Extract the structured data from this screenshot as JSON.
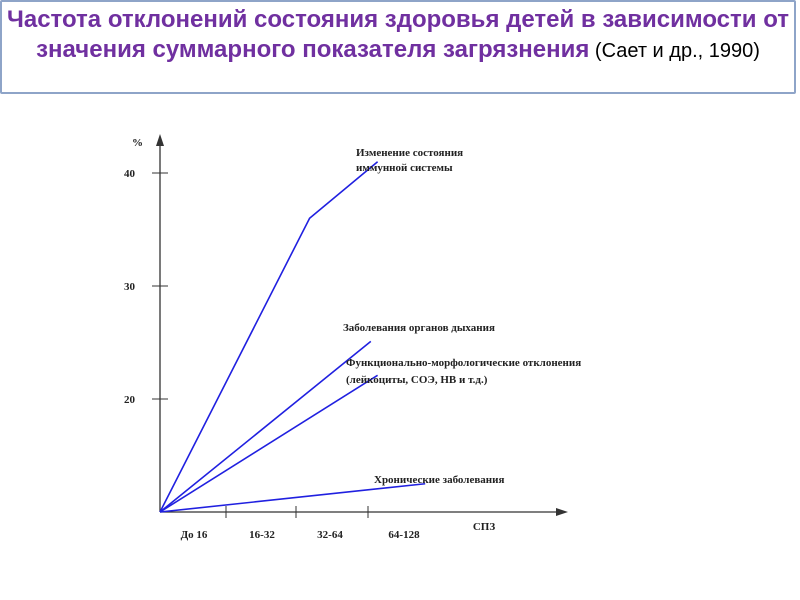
{
  "title": {
    "main": "Частота отклонений состояния здоровья детей в зависимости от значения суммарного показателя загрязнения",
    "source": " (Сает и др., 1990)"
  },
  "chart_data": {
    "type": "line",
    "xlabel": "СПЗ",
    "ylabel": "%",
    "categories": [
      "До 16",
      "16-32",
      "32-64",
      "64-128"
    ],
    "yticks": [
      20,
      30,
      40
    ],
    "ylim": [
      10,
      43
    ],
    "grid": false,
    "series": [
      {
        "name": "Изменение состояния иммунной системы",
        "color": "#2020e0",
        "points": [
          [
            0,
            10
          ],
          [
            2.2,
            36
          ],
          [
            3.2,
            41
          ]
        ]
      },
      {
        "name": "Заболевания органов дыхания",
        "color": "#2020e0",
        "points": [
          [
            0,
            10
          ],
          [
            3.1,
            25.1
          ]
        ]
      },
      {
        "name": "Функционально-морфологические отклонения (лейкоциты, СОЭ, HB и т.д.)",
        "color": "#2020e0",
        "points": [
          [
            0,
            10
          ],
          [
            3.2,
            22.1
          ]
        ]
      },
      {
        "name": "Хронические заболевания",
        "color": "#2020e0",
        "points": [
          [
            0,
            10
          ],
          [
            3.9,
            12.5
          ]
        ]
      }
    ]
  }
}
